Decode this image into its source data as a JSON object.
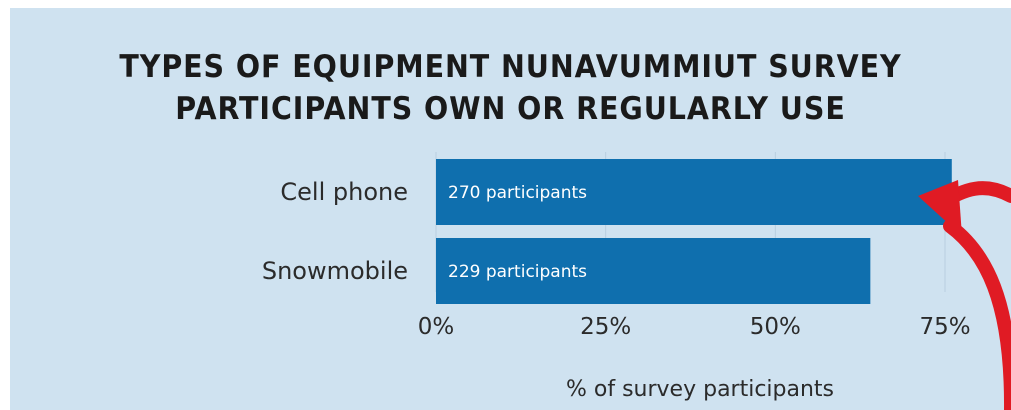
{
  "chart_data": {
    "type": "bar",
    "orientation": "horizontal",
    "title_lines": [
      "TYPES OF EQUIPMENT NUNAVUMMIUT SURVEY",
      "PARTICIPANTS OWN OR REGULARLY USE"
    ],
    "categories": [
      "Cell phone",
      "Snowmobile"
    ],
    "values": [
      76,
      64
    ],
    "bar_labels": [
      "270 participants",
      "229 participants"
    ],
    "xlabel": "% of survey participants",
    "ylabel": "",
    "xlim": [
      0,
      75
    ],
    "ticks": [
      0,
      25,
      50,
      75
    ],
    "tick_labels": [
      "0%",
      "25%",
      "50%",
      "75%"
    ],
    "grid": true,
    "bar_color": "#0f6fae",
    "background_color": "#cfe2f0",
    "annotation": "red-arrow"
  }
}
